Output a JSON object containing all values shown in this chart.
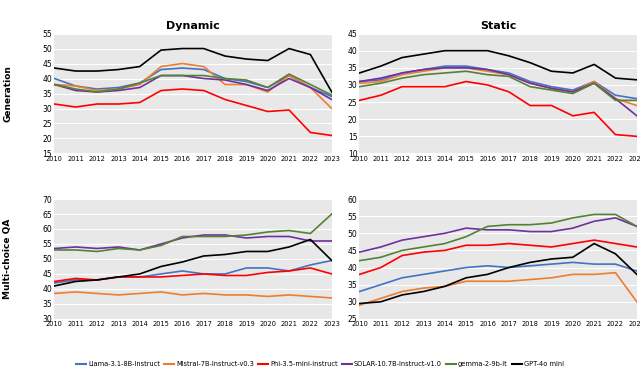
{
  "years": [
    2010,
    2011,
    2012,
    2013,
    2014,
    2015,
    2016,
    2017,
    2018,
    2019,
    2020,
    2021,
    2022,
    2023
  ],
  "dynamic_generation": {
    "llama": [
      40.0,
      37.5,
      36.5,
      37.0,
      38.5,
      43.0,
      43.5,
      43.0,
      40.0,
      39.0,
      37.0,
      41.0,
      37.0,
      34.0
    ],
    "mistral": [
      38.0,
      37.5,
      36.0,
      36.5,
      38.0,
      44.0,
      45.0,
      44.0,
      38.0,
      38.0,
      35.5,
      41.0,
      37.0,
      30.0
    ],
    "phi": [
      31.5,
      30.5,
      31.5,
      31.5,
      32.0,
      36.0,
      36.5,
      36.0,
      33.0,
      31.0,
      29.0,
      29.5,
      22.0,
      21.0
    ],
    "solar": [
      38.0,
      36.0,
      35.5,
      36.0,
      37.0,
      41.0,
      41.0,
      40.0,
      39.5,
      38.0,
      36.0,
      40.0,
      37.0,
      33.0
    ],
    "gemma": [
      38.0,
      36.5,
      35.5,
      36.5,
      38.5,
      41.0,
      41.0,
      41.0,
      40.0,
      39.5,
      37.0,
      41.5,
      38.0,
      34.5
    ],
    "gpt4o": [
      43.5,
      42.5,
      42.5,
      43.0,
      44.0,
      49.5,
      50.0,
      50.0,
      47.5,
      46.5,
      46.0,
      50.0,
      48.0,
      35.5
    ]
  },
  "static_generation": {
    "llama": [
      31.0,
      31.5,
      33.5,
      34.5,
      35.5,
      35.5,
      34.5,
      33.5,
      31.0,
      29.5,
      28.5,
      31.0,
      27.0,
      26.0
    ],
    "mistral": [
      30.5,
      31.0,
      33.0,
      34.0,
      35.0,
      35.0,
      34.0,
      33.0,
      30.5,
      29.0,
      28.0,
      31.0,
      26.0,
      24.0
    ],
    "phi": [
      25.5,
      27.0,
      29.5,
      29.5,
      29.5,
      31.0,
      30.0,
      28.0,
      24.0,
      24.0,
      21.0,
      22.0,
      15.5,
      15.0
    ],
    "solar": [
      31.0,
      32.0,
      33.5,
      34.5,
      35.0,
      35.0,
      34.5,
      33.0,
      30.5,
      29.0,
      28.0,
      30.5,
      26.0,
      21.0
    ],
    "gemma": [
      29.5,
      30.5,
      32.0,
      33.0,
      33.5,
      34.0,
      33.0,
      32.5,
      29.5,
      28.5,
      27.5,
      30.5,
      25.5,
      25.5
    ],
    "gpt4o": [
      33.5,
      35.5,
      38.0,
      39.0,
      40.0,
      40.0,
      40.0,
      38.5,
      36.5,
      34.0,
      33.5,
      36.0,
      32.0,
      31.5
    ]
  },
  "dynamic_mcqa": {
    "llama": [
      42.0,
      43.0,
      43.0,
      44.0,
      44.0,
      45.0,
      46.0,
      45.0,
      45.0,
      47.0,
      47.0,
      46.0,
      48.0,
      49.5
    ],
    "mistral": [
      38.5,
      39.0,
      38.5,
      38.0,
      38.5,
      39.0,
      38.0,
      38.5,
      38.0,
      38.0,
      37.5,
      38.0,
      37.5,
      37.0
    ],
    "phi": [
      42.5,
      43.5,
      43.0,
      44.0,
      44.0,
      44.0,
      44.5,
      45.0,
      44.5,
      44.5,
      45.5,
      46.0,
      47.0,
      45.0
    ],
    "solar": [
      53.5,
      54.0,
      53.5,
      54.0,
      53.0,
      55.0,
      57.0,
      58.0,
      58.0,
      57.0,
      57.5,
      57.5,
      56.0,
      56.0
    ],
    "gemma": [
      53.0,
      53.0,
      52.5,
      53.5,
      53.0,
      54.5,
      57.5,
      57.5,
      57.5,
      58.0,
      59.0,
      59.5,
      58.5,
      65.0
    ],
    "gpt4o": [
      41.0,
      42.5,
      43.0,
      44.0,
      45.0,
      47.5,
      49.0,
      51.0,
      51.5,
      52.5,
      52.5,
      54.0,
      56.5,
      49.5
    ]
  },
  "static_mcqa": {
    "llama": [
      33.0,
      35.0,
      37.0,
      38.0,
      39.0,
      40.0,
      40.5,
      40.0,
      40.5,
      41.0,
      41.5,
      41.0,
      41.0,
      39.0
    ],
    "mistral": [
      29.0,
      31.0,
      33.0,
      34.0,
      34.5,
      36.0,
      36.0,
      36.0,
      36.5,
      37.0,
      38.0,
      38.0,
      38.5,
      30.0
    ],
    "phi": [
      38.0,
      40.0,
      43.5,
      44.5,
      45.0,
      46.5,
      46.5,
      47.0,
      46.5,
      46.0,
      47.0,
      48.0,
      47.0,
      46.0
    ],
    "solar": [
      44.5,
      46.0,
      48.0,
      49.0,
      50.0,
      51.5,
      51.0,
      51.0,
      50.5,
      50.5,
      51.5,
      53.5,
      54.5,
      52.0
    ],
    "gemma": [
      42.0,
      43.0,
      45.0,
      46.0,
      47.0,
      49.0,
      52.0,
      52.5,
      52.5,
      53.0,
      54.5,
      55.5,
      55.5,
      52.0
    ],
    "gpt4o": [
      29.5,
      30.0,
      32.0,
      33.0,
      34.5,
      37.0,
      38.0,
      40.0,
      41.5,
      42.5,
      43.0,
      47.0,
      44.0,
      38.0
    ]
  },
  "colors": {
    "llama": "#4472C4",
    "mistral": "#ED7D31",
    "phi": "#FF0000",
    "solar": "#7030A0",
    "gemma": "#548235",
    "gpt4o": "#000000"
  },
  "labels": {
    "llama": "Llama-3.1-8B-Instruct",
    "mistral": "Mistral-7B-Instruct-v0.3",
    "phi": "Phi-3.5-mini-instruct",
    "solar": "SOLAR-10.7B-Instruct-v1.0",
    "gemma": "gemma-2-9b-it",
    "gpt4o": "GPT-4o mini"
  },
  "titles": [
    "Dynamic",
    "Static"
  ],
  "ylabels": [
    "Generation",
    "Multi-choice QA"
  ],
  "ylims_gen_dyn": [
    15,
    55
  ],
  "ylims_gen_sta": [
    10,
    45
  ],
  "ylims_mcqa_dyn": [
    30,
    70
  ],
  "ylims_mcqa_sta": [
    25,
    60
  ],
  "yticks_gen_dyn": [
    15,
    20,
    25,
    30,
    35,
    40,
    45,
    50,
    55
  ],
  "yticks_gen_sta": [
    10,
    15,
    20,
    25,
    30,
    35,
    40,
    45
  ],
  "yticks_mcqa_dyn": [
    30,
    35,
    40,
    45,
    50,
    55,
    60,
    65,
    70
  ],
  "yticks_mcqa_sta": [
    25,
    30,
    35,
    40,
    45,
    50,
    55,
    60
  ]
}
